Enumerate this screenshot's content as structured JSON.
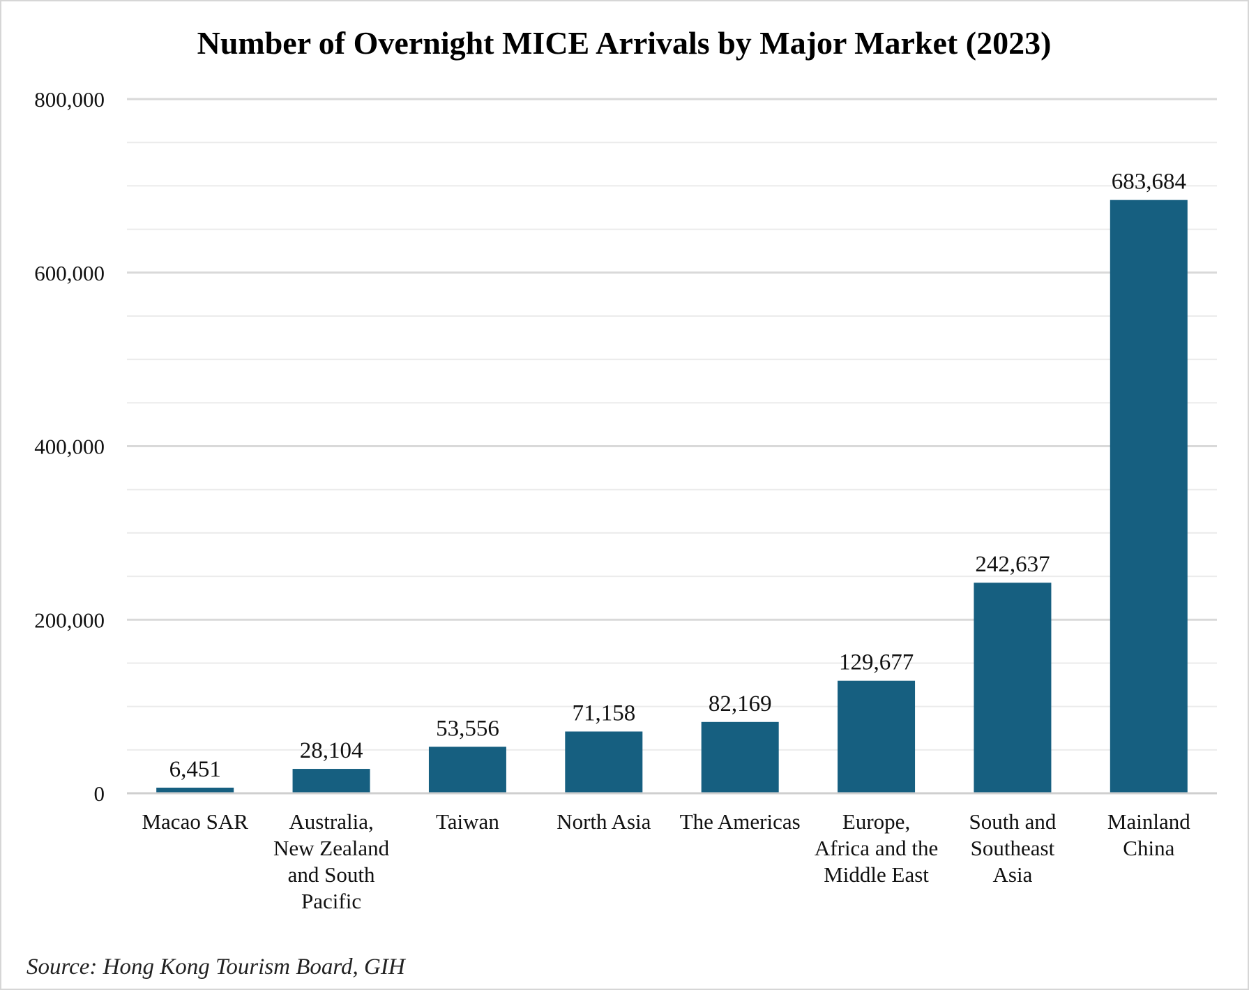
{
  "chart_data": {
    "type": "bar",
    "title": "Number of Overnight MICE Arrivals by Major Market (2023)",
    "categories": [
      [
        "Macao SAR"
      ],
      [
        "Australia,",
        "New Zealand",
        "and South",
        "Pacific"
      ],
      [
        "Taiwan"
      ],
      [
        "North Asia"
      ],
      [
        "The Americas"
      ],
      [
        "Europe,",
        "Africa and the",
        "Middle East"
      ],
      [
        "South and",
        "Southeast",
        "Asia"
      ],
      [
        "Mainland",
        "China"
      ]
    ],
    "values": [
      6451,
      28104,
      53556,
      71158,
      82169,
      129677,
      242637,
      683684
    ],
    "data_labels": [
      "6,451",
      "28,104",
      "53,556",
      "71,158",
      "82,169",
      "129,677",
      "242,637",
      "683,684"
    ],
    "ylim": [
      0,
      800000
    ],
    "major_ticks": [
      0,
      200000,
      400000,
      600000,
      800000
    ],
    "major_tick_labels": [
      "0",
      "200,000",
      "400,000",
      "600,000",
      "800,000"
    ],
    "minor_tick_step": 50000,
    "grid": true,
    "xlabel": "",
    "ylabel": "",
    "colors": {
      "bar": "#165f80",
      "major_grid": "#d9d9d9",
      "minor_grid": "#ebebeb",
      "axis": "#cfcfcf"
    }
  },
  "source_note": "Source: Hong Kong Tourism Board, GIH"
}
